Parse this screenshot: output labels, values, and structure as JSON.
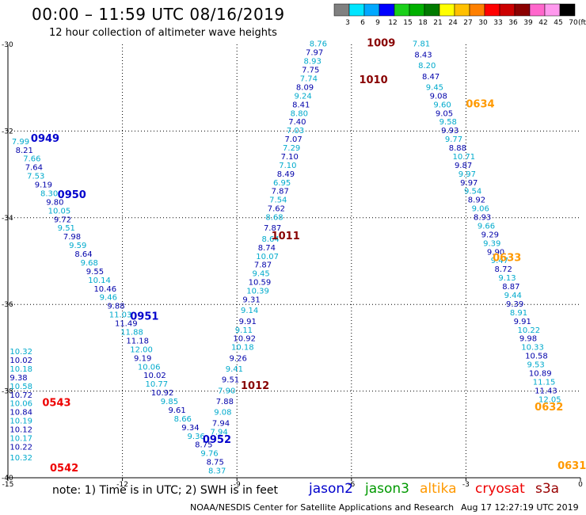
{
  "header": {
    "title": "00:00 – 11:59 UTC 08/16/2019",
    "subtitle": "12 hour collection of altimeter wave heights"
  },
  "footer": {
    "note": "note: 1) Time is in UTC; 2) SWH is in feet",
    "credit": "NOAA/NESDIS Center for Satellite Applications and Research",
    "stamp": "Aug 17 12:27:19 UTC 2019"
  },
  "legend": [
    {
      "name": "jason2",
      "color": "#0000cc"
    },
    {
      "name": "jason3",
      "color": "#009900"
    },
    {
      "name": "altika",
      "color": "#ff9900"
    },
    {
      "name": "cryosat",
      "color": "#ee0000"
    },
    {
      "name": "s3a",
      "color": "#990000"
    }
  ],
  "colorbar": {
    "unit": "(ft)",
    "labels": [
      "3",
      "6",
      "9",
      "12",
      "15",
      "18",
      "21",
      "24",
      "27",
      "30",
      "33",
      "36",
      "39",
      "42",
      "45",
      "70"
    ],
    "colors": [
      "#808080",
      "#00e5ff",
      "#00a8ff",
      "#0000ff",
      "#1ad01a",
      "#00b000",
      "#007a00",
      "#ffff00",
      "#ffc000",
      "#ff8000",
      "#ff0000",
      "#cc0000",
      "#8b0000",
      "#ff66cc",
      "#ff99ee",
      "#000000"
    ]
  },
  "chart_data": {
    "type": "scatter",
    "xlim": [
      -15,
      0
    ],
    "ylim": [
      -40,
      -30
    ],
    "xticks": [
      "-15",
      "-12",
      "-9",
      "-6",
      "-3",
      "0"
    ],
    "yticks": [
      "-30",
      "-32",
      "-34",
      "-36",
      "-38",
      "-40"
    ],
    "value_colors": {
      "light": "#00aacc",
      "dark": "#0000aa"
    },
    "passes": [
      {
        "label": "1009",
        "x": -5.6,
        "y": -30.05,
        "color": "#880000"
      },
      {
        "label": "1010",
        "x": -5.8,
        "y": -30.9,
        "color": "#880000"
      },
      {
        "label": "1011",
        "x": -8.1,
        "y": -34.5,
        "color": "#880000"
      },
      {
        "label": "1012",
        "x": -8.9,
        "y": -37.95,
        "color": "#880000"
      },
      {
        "label": "0949",
        "x": -14.4,
        "y": -32.25,
        "color": "#0000cc"
      },
      {
        "label": "0950",
        "x": -13.7,
        "y": -33.55,
        "color": "#0000cc"
      },
      {
        "label": "0951",
        "x": -11.8,
        "y": -36.35,
        "color": "#0000cc"
      },
      {
        "label": "0952",
        "x": -9.9,
        "y": -39.2,
        "color": "#0000cc"
      },
      {
        "label": "0543",
        "x": -14.1,
        "y": -38.35,
        "color": "#ee0000"
      },
      {
        "label": "0542",
        "x": -13.9,
        "y": -39.85,
        "color": "#ee0000"
      },
      {
        "label": "0634",
        "x": -3.0,
        "y": -31.45,
        "color": "#ff9900"
      },
      {
        "label": "0633",
        "x": -2.3,
        "y": -35.0,
        "color": "#ff9900"
      },
      {
        "label": "0632",
        "x": -1.2,
        "y": -38.45,
        "color": "#ff9900"
      },
      {
        "label": "0631",
        "x": -0.6,
        "y": -39.8,
        "color": "#ff9900"
      }
    ],
    "tracks": [
      {
        "name": "track-1009-1012",
        "points": [
          {
            "x": -7.1,
            "y": -30.05,
            "v": "8.76"
          },
          {
            "x": -7.2,
            "y": -30.25,
            "v": "7.97"
          },
          {
            "x": -7.25,
            "y": -30.45,
            "v": "8.93"
          },
          {
            "x": -7.3,
            "y": -30.65,
            "v": "7.75"
          },
          {
            "x": -7.35,
            "y": -30.85,
            "v": "7.74"
          },
          {
            "x": -7.45,
            "y": -31.05,
            "v": "8.09"
          },
          {
            "x": -7.5,
            "y": -31.25,
            "v": "9.24"
          },
          {
            "x": -7.55,
            "y": -31.45,
            "v": "8.41"
          },
          {
            "x": -7.6,
            "y": -31.65,
            "v": "8.80"
          },
          {
            "x": -7.65,
            "y": -31.85,
            "v": "7.40"
          },
          {
            "x": -7.7,
            "y": -32.05,
            "v": "7.03"
          },
          {
            "x": -7.75,
            "y": -32.25,
            "v": "7.07"
          },
          {
            "x": -7.8,
            "y": -32.45,
            "v": "7.29"
          },
          {
            "x": -7.85,
            "y": -32.65,
            "v": "7.10"
          },
          {
            "x": -7.9,
            "y": -32.85,
            "v": "7.10"
          },
          {
            "x": -7.95,
            "y": -33.05,
            "v": "8.49"
          },
          {
            "x": -8.05,
            "y": -33.25,
            "v": "6.95"
          },
          {
            "x": -8.1,
            "y": -33.45,
            "v": "7.87"
          },
          {
            "x": -8.15,
            "y": -33.65,
            "v": "7.54"
          },
          {
            "x": -8.2,
            "y": -33.85,
            "v": "7.62"
          },
          {
            "x": -8.25,
            "y": -34.05,
            "v": "8.68"
          },
          {
            "x": -8.3,
            "y": -34.3,
            "v": "7.87"
          },
          {
            "x": -8.35,
            "y": -34.55,
            "v": "8.64"
          },
          {
            "x": -8.45,
            "y": -34.75,
            "v": "8.74"
          },
          {
            "x": -8.5,
            "y": -34.95,
            "v": "10.07"
          },
          {
            "x": -8.55,
            "y": -35.15,
            "v": "7.87"
          },
          {
            "x": -8.6,
            "y": -35.35,
            "v": "9.45"
          },
          {
            "x": -8.7,
            "y": -35.55,
            "v": "10.59"
          },
          {
            "x": -8.75,
            "y": -35.75,
            "v": "10.39"
          },
          {
            "x": -8.85,
            "y": -35.95,
            "v": "9.31"
          },
          {
            "x": -8.9,
            "y": -36.2,
            "v": "9.14"
          },
          {
            "x": -8.95,
            "y": -36.45,
            "v": "9.91"
          },
          {
            "x": -9.05,
            "y": -36.65,
            "v": "9.11"
          },
          {
            "x": -9.1,
            "y": -36.85,
            "v": "10.92"
          },
          {
            "x": -9.15,
            "y": -37.05,
            "v": "10.18"
          },
          {
            "x": -9.2,
            "y": -37.3,
            "v": "9.26"
          },
          {
            "x": -9.3,
            "y": -37.55,
            "v": "9.41"
          },
          {
            "x": -9.4,
            "y": -37.8,
            "v": "9.51"
          },
          {
            "x": -9.5,
            "y": -38.05,
            "v": "7.90"
          },
          {
            "x": -9.55,
            "y": -38.3,
            "v": "7.88"
          },
          {
            "x": -9.6,
            "y": -38.55,
            "v": "9.08"
          },
          {
            "x": -9.65,
            "y": -38.8,
            "v": "7.94"
          },
          {
            "x": -9.7,
            "y": -39.0,
            "v": "7.94"
          }
        ]
      },
      {
        "name": "track-0949-0952",
        "points": [
          {
            "x": -14.9,
            "y": -32.3,
            "v": "7.99"
          },
          {
            "x": -14.8,
            "y": -32.5,
            "v": "8.21"
          },
          {
            "x": -14.6,
            "y": -32.7,
            "v": "7.66"
          },
          {
            "x": -14.55,
            "y": -32.9,
            "v": "7.64"
          },
          {
            "x": -14.5,
            "y": -33.1,
            "v": "7.53"
          },
          {
            "x": -14.3,
            "y": -33.3,
            "v": "9.19"
          },
          {
            "x": -14.15,
            "y": -33.5,
            "v": "8.30"
          },
          {
            "x": -14.0,
            "y": -33.7,
            "v": "9.80"
          },
          {
            "x": -13.95,
            "y": -33.9,
            "v": "10.05"
          },
          {
            "x": -13.8,
            "y": -34.1,
            "v": "9.72"
          },
          {
            "x": -13.7,
            "y": -34.3,
            "v": "9.51"
          },
          {
            "x": -13.55,
            "y": -34.5,
            "v": "7.98"
          },
          {
            "x": -13.4,
            "y": -34.7,
            "v": "9.59"
          },
          {
            "x": -13.25,
            "y": -34.9,
            "v": "8.64"
          },
          {
            "x": -13.1,
            "y": -35.1,
            "v": "9.68"
          },
          {
            "x": -12.95,
            "y": -35.3,
            "v": "9.55"
          },
          {
            "x": -12.9,
            "y": -35.5,
            "v": "10.14"
          },
          {
            "x": -12.75,
            "y": -35.7,
            "v": "10.46"
          },
          {
            "x": -12.6,
            "y": -35.9,
            "v": "9.46"
          },
          {
            "x": -12.4,
            "y": -36.1,
            "v": "9.88"
          },
          {
            "x": -12.35,
            "y": -36.3,
            "v": "11.03"
          },
          {
            "x": -12.2,
            "y": -36.5,
            "v": "11.49"
          },
          {
            "x": -12.05,
            "y": -36.7,
            "v": "11.88"
          },
          {
            "x": -11.9,
            "y": -36.9,
            "v": "11.18"
          },
          {
            "x": -11.8,
            "y": -37.1,
            "v": "12.00"
          },
          {
            "x": -11.7,
            "y": -37.3,
            "v": "9.19"
          },
          {
            "x": -11.6,
            "y": -37.5,
            "v": "10.06"
          },
          {
            "x": -11.45,
            "y": -37.7,
            "v": "10.02"
          },
          {
            "x": -11.4,
            "y": -37.9,
            "v": "10.77"
          },
          {
            "x": -11.25,
            "y": -38.1,
            "v": "10.92"
          },
          {
            "x": -11.0,
            "y": -38.3,
            "v": "9.85"
          },
          {
            "x": -10.8,
            "y": -38.5,
            "v": "9.61"
          },
          {
            "x": -10.65,
            "y": -38.7,
            "v": "8.66"
          },
          {
            "x": -10.45,
            "y": -38.9,
            "v": "9.34"
          },
          {
            "x": -10.3,
            "y": -39.1,
            "v": "9.36"
          },
          {
            "x": -10.1,
            "y": -39.3,
            "v": "8.75"
          },
          {
            "x": -9.95,
            "y": -39.5,
            "v": "9.76"
          },
          {
            "x": -9.8,
            "y": -39.7,
            "v": "8.75"
          },
          {
            "x": -9.75,
            "y": -39.9,
            "v": "8.37"
          }
        ]
      },
      {
        "name": "track-0543-0542",
        "points": [
          {
            "x": -14.95,
            "y": -37.15,
            "v": "10.32"
          },
          {
            "x": -14.95,
            "y": -37.35,
            "v": "10.02"
          },
          {
            "x": -14.95,
            "y": -37.55,
            "v": "10.18"
          },
          {
            "x": -14.95,
            "y": -37.75,
            "v": "9.38"
          },
          {
            "x": -14.95,
            "y": -37.95,
            "v": "10.58"
          },
          {
            "x": -14.95,
            "y": -38.15,
            "v": "10.72"
          },
          {
            "x": -14.95,
            "y": -38.35,
            "v": "10.06"
          },
          {
            "x": -14.95,
            "y": -38.55,
            "v": "10.84"
          },
          {
            "x": -14.95,
            "y": -38.75,
            "v": "10.19"
          },
          {
            "x": -14.95,
            "y": -38.95,
            "v": "10.12"
          },
          {
            "x": -14.95,
            "y": -39.15,
            "v": "10.17"
          },
          {
            "x": -14.95,
            "y": -39.35,
            "v": "10.22"
          },
          {
            "x": -14.95,
            "y": -39.6,
            "v": "10.32"
          }
        ]
      },
      {
        "name": "track-0634-0631",
        "points": [
          {
            "x": -4.4,
            "y": -30.05,
            "v": "7.81"
          },
          {
            "x": -4.35,
            "y": -30.3,
            "v": "8.43"
          },
          {
            "x": -4.25,
            "y": -30.55,
            "v": "8.20"
          },
          {
            "x": -4.15,
            "y": -30.8,
            "v": "8.47"
          },
          {
            "x": -4.05,
            "y": -31.05,
            "v": "9.45"
          },
          {
            "x": -3.95,
            "y": -31.25,
            "v": "9.08"
          },
          {
            "x": -3.85,
            "y": -31.45,
            "v": "9.60"
          },
          {
            "x": -3.8,
            "y": -31.65,
            "v": "9.05"
          },
          {
            "x": -3.7,
            "y": -31.85,
            "v": "9.58"
          },
          {
            "x": -3.65,
            "y": -32.05,
            "v": "9.93"
          },
          {
            "x": -3.55,
            "y": -32.25,
            "v": "9.77"
          },
          {
            "x": -3.45,
            "y": -32.45,
            "v": "8.88"
          },
          {
            "x": -3.35,
            "y": -32.65,
            "v": "10.71"
          },
          {
            "x": -3.3,
            "y": -32.85,
            "v": "9.87"
          },
          {
            "x": -3.2,
            "y": -33.05,
            "v": "9.97"
          },
          {
            "x": -3.15,
            "y": -33.25,
            "v": "9.97"
          },
          {
            "x": -3.05,
            "y": -33.45,
            "v": "9.54"
          },
          {
            "x": -2.95,
            "y": -33.65,
            "v": "8.92"
          },
          {
            "x": -2.85,
            "y": -33.85,
            "v": "9.06"
          },
          {
            "x": -2.8,
            "y": -34.05,
            "v": "8.93"
          },
          {
            "x": -2.7,
            "y": -34.25,
            "v": "9.66"
          },
          {
            "x": -2.6,
            "y": -34.45,
            "v": "9.29"
          },
          {
            "x": -2.55,
            "y": -34.65,
            "v": "9.39"
          },
          {
            "x": -2.45,
            "y": -34.85,
            "v": "9.90"
          },
          {
            "x": -2.35,
            "y": -35.05,
            "v": "9.47"
          },
          {
            "x": -2.25,
            "y": -35.25,
            "v": "8.72"
          },
          {
            "x": -2.15,
            "y": -35.45,
            "v": "9.13"
          },
          {
            "x": -2.05,
            "y": -35.65,
            "v": "8.87"
          },
          {
            "x": -2.0,
            "y": -35.85,
            "v": "9.44"
          },
          {
            "x": -1.95,
            "y": -36.05,
            "v": "9.39"
          },
          {
            "x": -1.85,
            "y": -36.25,
            "v": "8.91"
          },
          {
            "x": -1.75,
            "y": -36.45,
            "v": "9.91"
          },
          {
            "x": -1.65,
            "y": -36.65,
            "v": "10.22"
          },
          {
            "x": -1.6,
            "y": -36.85,
            "v": "9.98"
          },
          {
            "x": -1.55,
            "y": -37.05,
            "v": "10.33"
          },
          {
            "x": -1.45,
            "y": -37.25,
            "v": "10.58"
          },
          {
            "x": -1.4,
            "y": -37.45,
            "v": "9.53"
          },
          {
            "x": -1.35,
            "y": -37.65,
            "v": "10.89"
          },
          {
            "x": -1.25,
            "y": -37.85,
            "v": "11.15"
          },
          {
            "x": -1.2,
            "y": -38.05,
            "v": "11.43"
          },
          {
            "x": -1.1,
            "y": -38.25,
            "v": "12.05"
          }
        ]
      }
    ]
  }
}
